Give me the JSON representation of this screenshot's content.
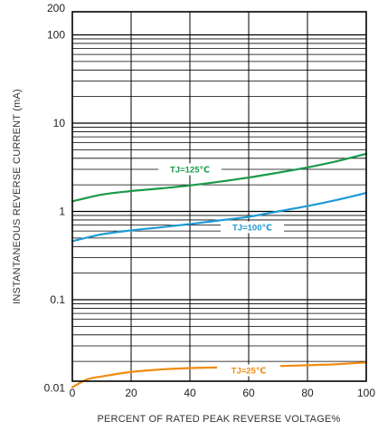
{
  "chart_data": {
    "type": "line",
    "xlabel": "PERCENT OF RATED PEAK REVERSE VOLTAGE%",
    "ylabel": "INSTANTANEOUS REVERSE CURRENT (mA)",
    "xlim": [
      0,
      100
    ],
    "ylim": [
      0.01,
      200
    ],
    "y_scale": "log",
    "grid": true,
    "x_ticks": [
      0,
      20,
      40,
      60,
      80,
      100
    ],
    "x_tick_labels": [
      "0",
      "20",
      "40",
      "60",
      "80",
      "100"
    ],
    "y_ticks": [
      0.01,
      0.1,
      1,
      10,
      100,
      200
    ],
    "y_tick_labels": [
      "0.01",
      "0.1",
      "1",
      "10",
      "100",
      "200"
    ],
    "colors": {
      "series_125": "#1a9a4a",
      "series_100": "#1e9ad6",
      "series_25": "#f08c10",
      "grid": "#000000"
    },
    "series": [
      {
        "name": "TJ=125℃",
        "color": "#1a9a4a",
        "x": [
          0,
          10,
          20,
          30,
          40,
          50,
          60,
          70,
          80,
          90,
          100
        ],
        "y": [
          1.3,
          1.55,
          1.7,
          1.82,
          1.97,
          2.17,
          2.42,
          2.75,
          3.15,
          3.7,
          4.5
        ]
      },
      {
        "name": "TJ=100℃",
        "color": "#1e9ad6",
        "x": [
          0,
          10,
          20,
          30,
          40,
          50,
          60,
          70,
          80,
          90,
          100
        ],
        "y": [
          0.46,
          0.55,
          0.61,
          0.66,
          0.72,
          0.79,
          0.87,
          1.0,
          1.15,
          1.35,
          1.62
        ]
      },
      {
        "name": "TJ=25℃",
        "color": "#f08c10",
        "x": [
          0,
          5,
          10,
          20,
          30,
          40,
          50,
          60,
          70,
          80,
          90,
          100
        ],
        "y": [
          0.0102,
          0.0125,
          0.0135,
          0.0152,
          0.0162,
          0.0168,
          0.0171,
          0.0174,
          0.0177,
          0.0181,
          0.0186,
          0.0195
        ]
      }
    ]
  }
}
